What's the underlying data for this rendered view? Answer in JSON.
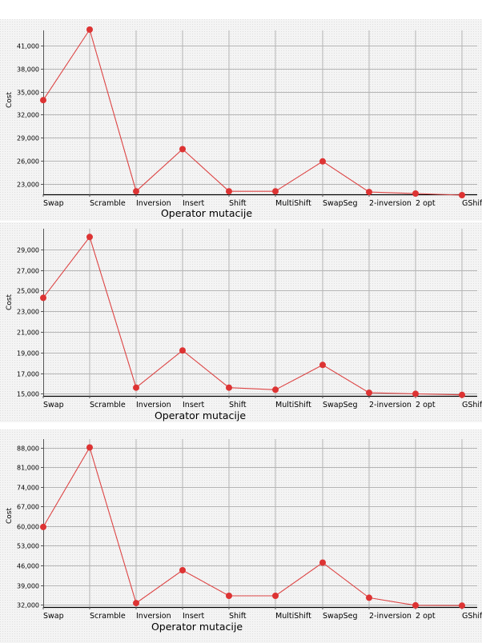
{
  "colors": {
    "line": "#dd4444",
    "marker": "#dd3333",
    "grid": "#b4b4b4",
    "panel_bg": "#f1f1f1"
  },
  "chart_data": [
    {
      "type": "line",
      "xlabel": "Operator mutacije",
      "ylabel": "Cost",
      "categories": [
        "Swap",
        "Scramble",
        "Inversion",
        "Insert",
        "Shift",
        "MultiShift",
        "SwapSeg",
        "2-inversion",
        "2 opt",
        "GShift"
      ],
      "ylim": [
        21600,
        43000
      ],
      "yticks": [
        23000,
        26000,
        29000,
        32000,
        35000,
        38000,
        41000
      ],
      "ytick_labels": [
        "23,000",
        "26,000",
        "29,000",
        "32,000",
        "35,000",
        "38,000",
        "41,000"
      ],
      "grid": true,
      "series": [
        {
          "values": [
            33900,
            43100,
            22000,
            27500,
            22000,
            22000,
            25900,
            21900,
            21700,
            21500
          ]
        }
      ]
    },
    {
      "type": "line",
      "xlabel": "Operator mutacije",
      "ylabel": "Cost",
      "categories": [
        "Swap",
        "Scramble",
        "Inversion",
        "Insert",
        "Shift",
        "MultiShift",
        "SwapSeg",
        "2-inversion",
        "2 opt",
        "GShift"
      ],
      "ylim": [
        14800,
        31000
      ],
      "yticks": [
        15000,
        17000,
        19000,
        21000,
        23000,
        25000,
        27000,
        29000
      ],
      "ytick_labels": [
        "15,000",
        "17,000",
        "19,000",
        "21,000",
        "23,000",
        "25,000",
        "27,000",
        "29,000"
      ],
      "grid": true,
      "series": [
        {
          "values": [
            24300,
            30200,
            15600,
            19200,
            15600,
            15400,
            17800,
            15100,
            15000,
            14900
          ]
        }
      ]
    },
    {
      "type": "line",
      "xlabel": "Operator mutacije",
      "ylabel": "Cost",
      "categories": [
        "Swap",
        "Scramble",
        "Inversion",
        "Insert",
        "Shift",
        "MultiShift",
        "SwapSeg",
        "2-inversion",
        "2 opt",
        "GShift"
      ],
      "ylim": [
        31200,
        91000
      ],
      "yticks": [
        32000,
        39000,
        46000,
        53000,
        60000,
        67000,
        74000,
        81000,
        88000
      ],
      "ytick_labels": [
        "32,000",
        "39,000",
        "46,000",
        "53,000",
        "60,000",
        "67,000",
        "74,000",
        "81,000",
        "88,000"
      ],
      "grid": true,
      "series": [
        {
          "values": [
            59700,
            88000,
            32600,
            44300,
            35200,
            35200,
            47000,
            34500,
            31800,
            31700
          ]
        }
      ]
    }
  ]
}
